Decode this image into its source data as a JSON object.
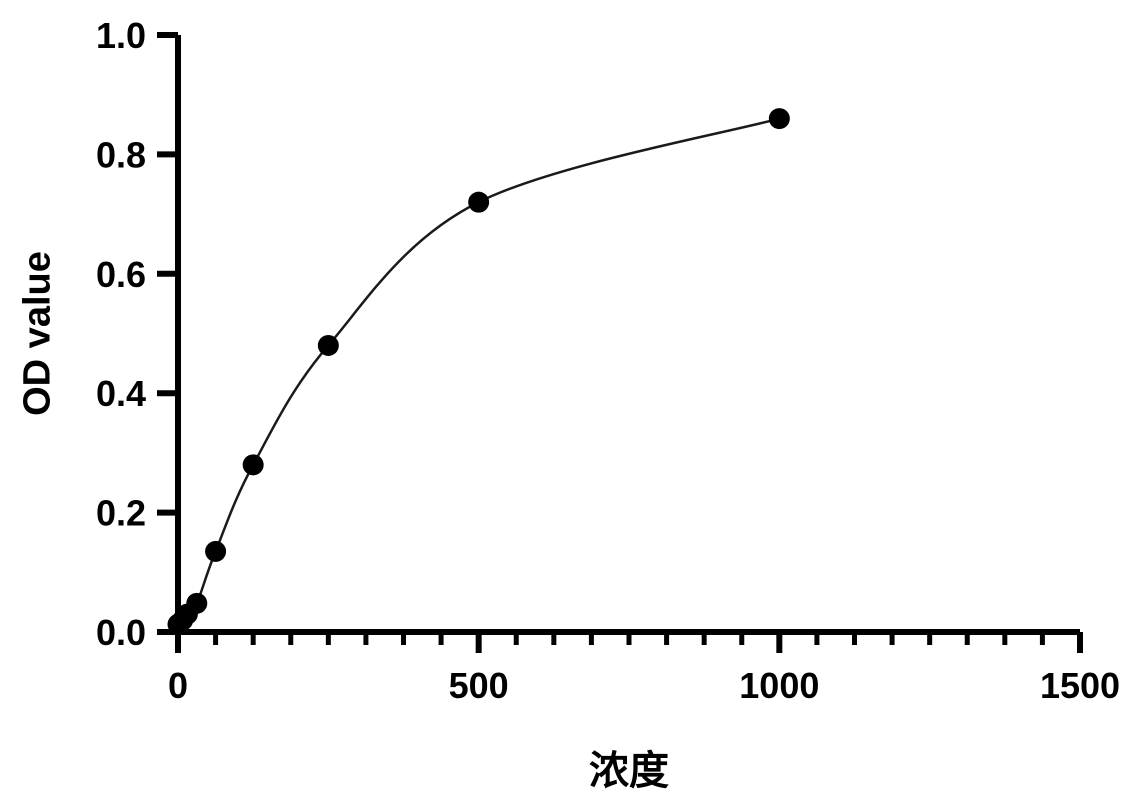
{
  "chart_data": {
    "type": "scatter",
    "title": "",
    "xlabel": "浓度",
    "ylabel": "OD value",
    "xlim": [
      0,
      1500
    ],
    "ylim": [
      0,
      1.0
    ],
    "x_ticks": [
      0,
      500,
      1000,
      1500
    ],
    "x_tick_labels": [
      "0",
      "500",
      "1000",
      "1500"
    ],
    "y_ticks": [
      0.0,
      0.2,
      0.4,
      0.6,
      0.8,
      1.0
    ],
    "y_tick_labels": [
      "0.0",
      "0.2",
      "0.4",
      "0.6",
      "0.8",
      "1.0"
    ],
    "x_minor_interval": 62.5,
    "grid": "off",
    "legend": "none",
    "points": [
      [
        0,
        0.013
      ],
      [
        7.8,
        0.02
      ],
      [
        15.6,
        0.03
      ],
      [
        31.25,
        0.048
      ],
      [
        62.5,
        0.135
      ],
      [
        125,
        0.28
      ],
      [
        250,
        0.48
      ],
      [
        500,
        0.72
      ],
      [
        1000,
        0.86
      ]
    ],
    "curve_style": "smooth fit through points",
    "marker_color": "#000000",
    "line_color": "#1a1a1a",
    "axis_color": "#000000",
    "background_color": "#ffffff"
  }
}
